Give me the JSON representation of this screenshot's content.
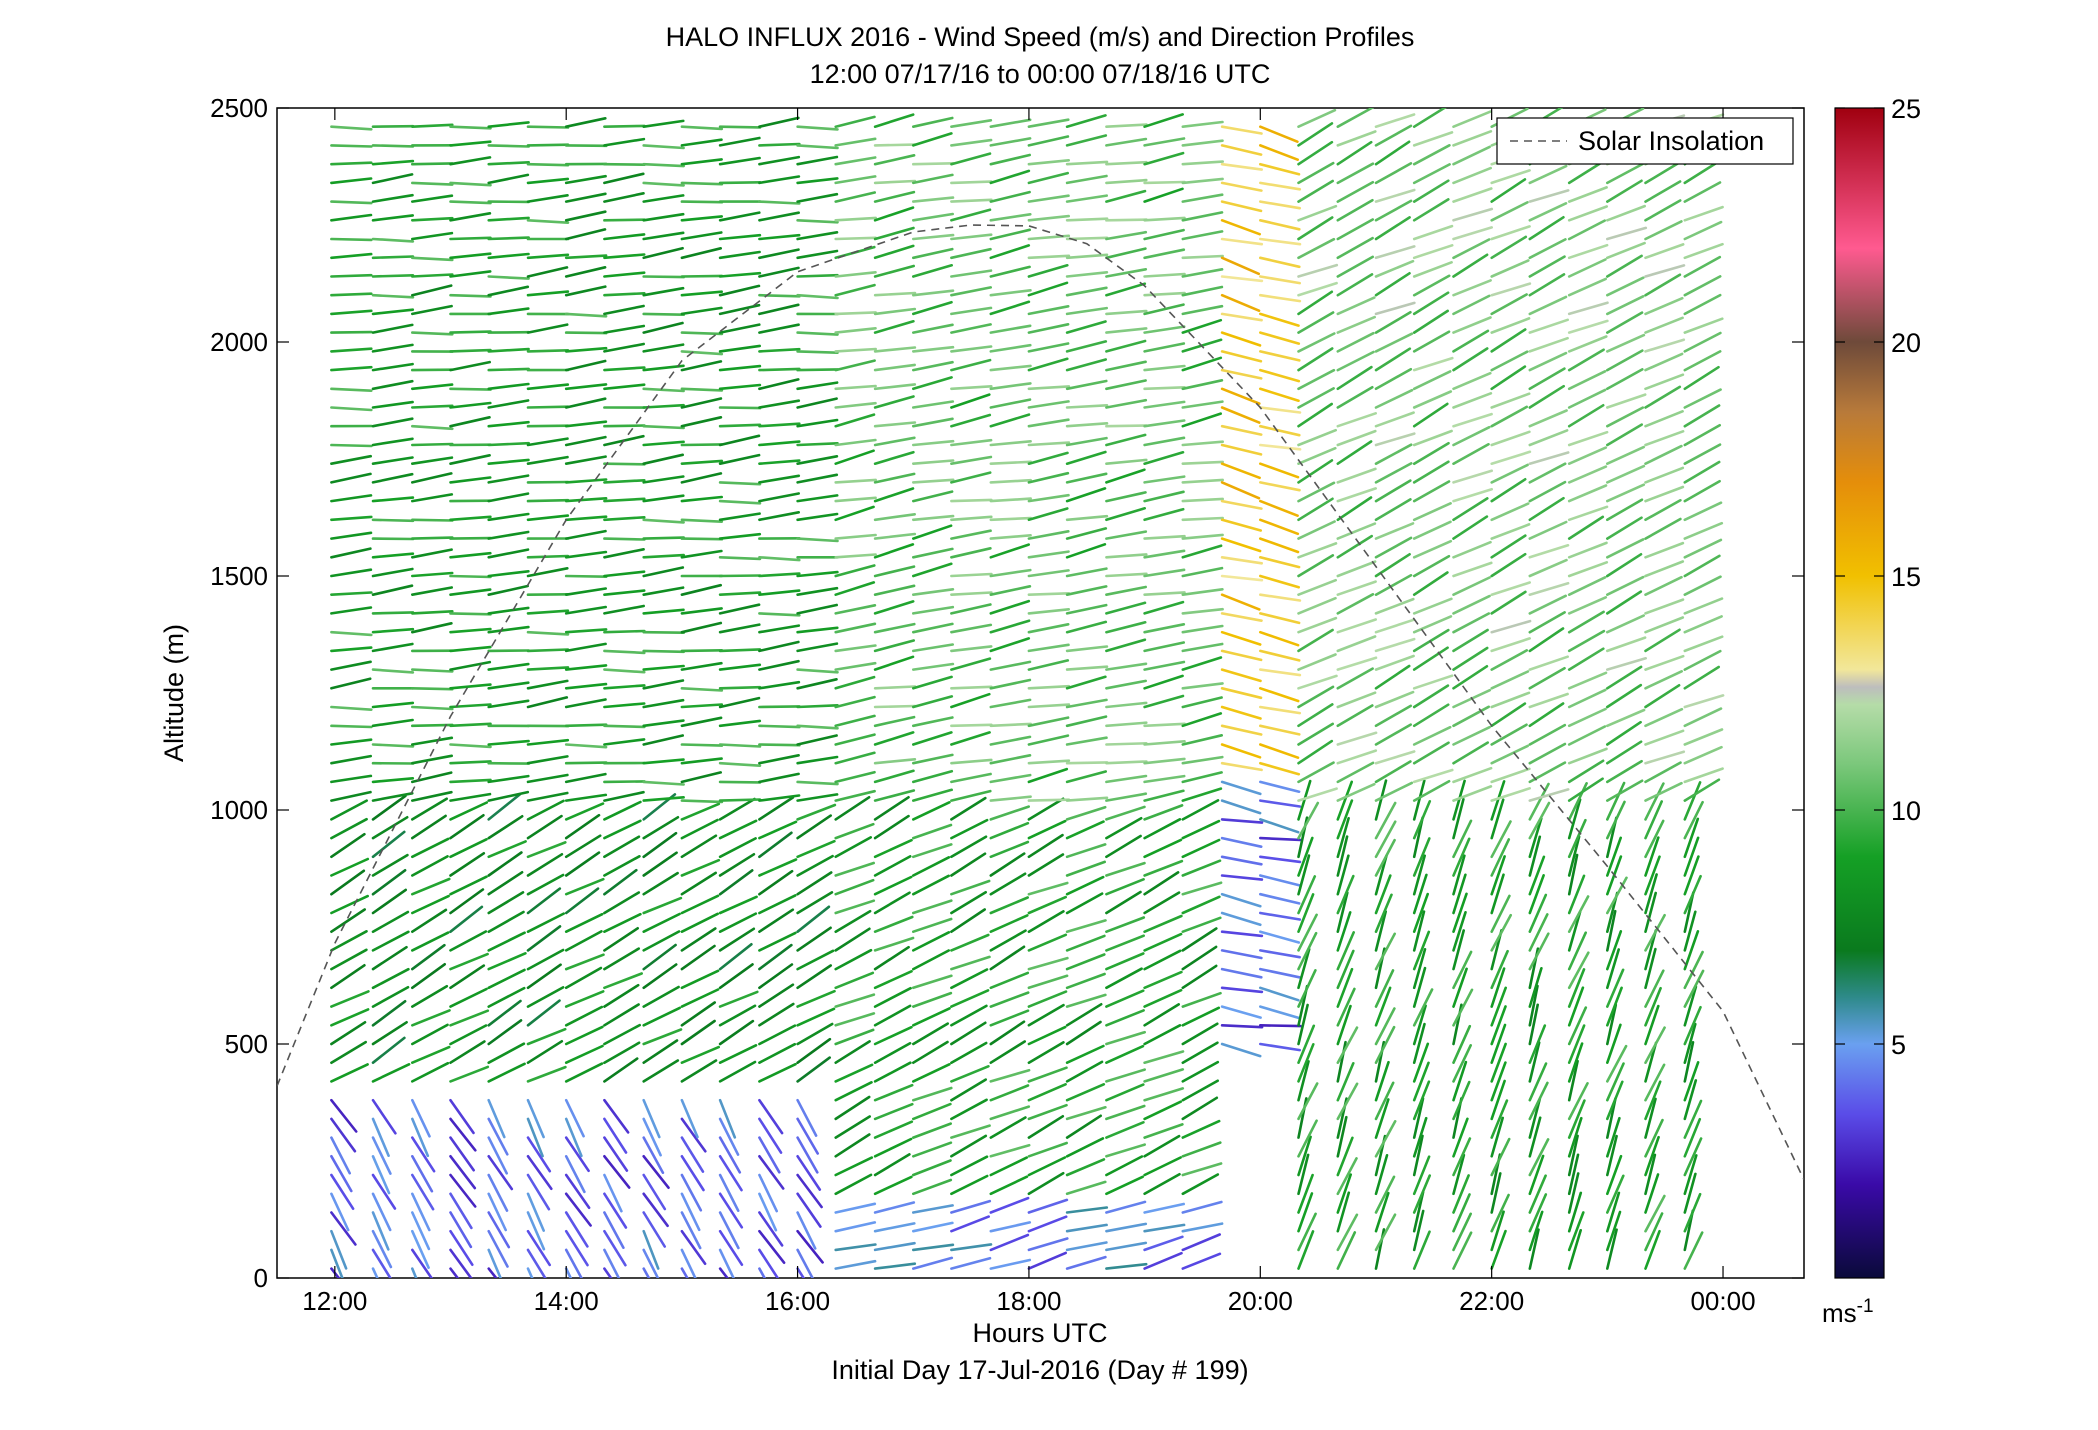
{
  "chart_data": {
    "type": "scatter",
    "title": "HALO INFLUX 2016 - Wind Speed (m/s) and Direction Profiles",
    "subtitle": "12:00 07/17/16 to 00:00 07/18/16  UTC",
    "xlabel": "Hours UTC",
    "footer": "Initial Day 17-Jul-2016 (Day # 199)",
    "ylabel": "Altitude (m)",
    "xlim": [
      11.5,
      24.7
    ],
    "ylim": [
      0,
      2500
    ],
    "x_ticks": [
      12,
      14,
      16,
      18,
      20,
      22,
      24
    ],
    "x_tick_labels": [
      "12:00",
      "14:00",
      "16:00",
      "18:00",
      "20:00",
      "22:00",
      "00:00"
    ],
    "y_ticks": [
      0,
      500,
      1000,
      1500,
      2000,
      2500
    ],
    "y_tick_labels": [
      "0",
      "500",
      "1000",
      "1500",
      "2000",
      "2500"
    ],
    "grid": false,
    "legend": {
      "position": "top-right",
      "entries": [
        "Solar Insolation"
      ]
    },
    "colorbar": {
      "min": 0,
      "max": 25,
      "ticks": [
        5,
        10,
        15,
        20,
        25
      ],
      "tick_labels": [
        "5",
        "10",
        "15",
        "20",
        "25"
      ],
      "unit_label": "ms",
      "unit_exponent": "-1"
    },
    "series": [
      {
        "name": "Solar Insolation",
        "style": "dashed",
        "color": "#555555",
        "x": [
          11.5,
          12.0,
          13.0,
          14.0,
          15.0,
          16.0,
          17.0,
          17.5,
          18.0,
          18.5,
          19.0,
          20.0,
          21.0,
          22.0,
          23.0,
          24.0,
          24.7
        ],
        "y": [
          410,
          715,
          1200,
          1620,
          1960,
          2150,
          2235,
          2250,
          2248,
          2210,
          2120,
          1860,
          1520,
          1180,
          880,
          570,
          210
        ]
      }
    ],
    "wind_barbs": {
      "times_hours": [
        11.97,
        12.33,
        12.67,
        13.0,
        13.33,
        13.67,
        14.0,
        14.33,
        14.67,
        15.0,
        15.33,
        15.67,
        16.0,
        16.33,
        16.67,
        17.0,
        17.33,
        17.67,
        18.0,
        18.33,
        18.67,
        19.0,
        19.33,
        19.67,
        20.0,
        20.33,
        20.67,
        21.0,
        21.33,
        21.67,
        22.0,
        22.33,
        22.67,
        23.0,
        23.33,
        23.67
      ],
      "altitude_step_m": 40,
      "altitude_range_m": [
        20,
        2480
      ],
      "segments": [
        {
          "hours": [
            11.9,
            16.1
          ],
          "alt_m": [
            0,
            400
          ],
          "direction_deg": 330,
          "speed_ms": 4.0
        },
        {
          "hours": [
            11.9,
            16.1
          ],
          "alt_m": [
            400,
            1000
          ],
          "direction_deg": 240,
          "speed_ms": 8.0
        },
        {
          "hours": [
            11.9,
            16.1
          ],
          "alt_m": [
            1000,
            2500
          ],
          "direction_deg": 265,
          "speed_ms": 9.0
        },
        {
          "hours": [
            16.1,
            19.4
          ],
          "alt_m": [
            0,
            150
          ],
          "direction_deg": 255,
          "speed_ms": 4.5
        },
        {
          "hours": [
            16.1,
            19.4
          ],
          "alt_m": [
            150,
            1000
          ],
          "direction_deg": 245,
          "speed_ms": 9.0
        },
        {
          "hours": [
            16.1,
            19.4
          ],
          "alt_m": [
            1000,
            2500
          ],
          "direction_deg": 260,
          "speed_ms": 10.5
        },
        {
          "hours": [
            19.4,
            20.05
          ],
          "alt_m": [
            500,
            1100
          ],
          "direction_deg": 280,
          "speed_ms": 4.0
        },
        {
          "hours": [
            19.4,
            20.05
          ],
          "alt_m": [
            1100,
            2500
          ],
          "direction_deg": 285,
          "speed_ms": 14.5
        },
        {
          "hours": [
            20.05,
            24.0
          ],
          "alt_m": [
            0,
            1000
          ],
          "direction_deg": 200,
          "speed_ms": 9.0
        },
        {
          "hours": [
            20.05,
            24.0
          ],
          "alt_m": [
            1000,
            2500
          ],
          "direction_deg": 245,
          "speed_ms": 11.0
        }
      ]
    }
  }
}
